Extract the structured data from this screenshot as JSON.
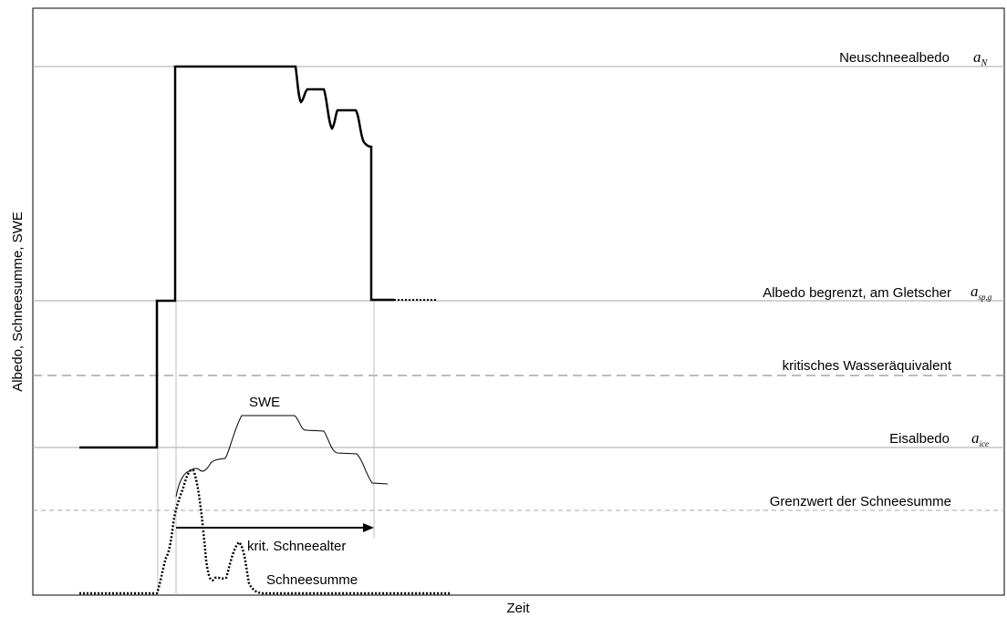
{
  "axes": {
    "ylabel": "Albedo, Schneesumme, SWE",
    "xlabel": "Zeit"
  },
  "reference_lines": [
    {
      "key": "neuschnee",
      "label": "Neuschneealbedo",
      "symbol": "a",
      "subscript": "N",
      "style": "solid"
    },
    {
      "key": "spg",
      "label": "Albedo begrenzt, am Gletscher",
      "symbol": "a",
      "subscript": "sp,g",
      "style": "solid"
    },
    {
      "key": "wasser",
      "label": "kritisches Wasseräquivalent",
      "style": "dashed-long"
    },
    {
      "key": "eis",
      "label": "Eisalbedo",
      "symbol": "a",
      "subscript": "ice",
      "style": "solid"
    },
    {
      "key": "grenz",
      "label": "Grenzwert der Schneesumme",
      "style": "dashed"
    }
  ],
  "curves": {
    "swe_label": "SWE",
    "schneesumme_label": "Schneesumme",
    "krit_label": "krit. Schneealter"
  },
  "colors": {
    "albedo_curve": "#000000",
    "reference_line": "#a6a6a6",
    "frame": "#000000"
  }
}
